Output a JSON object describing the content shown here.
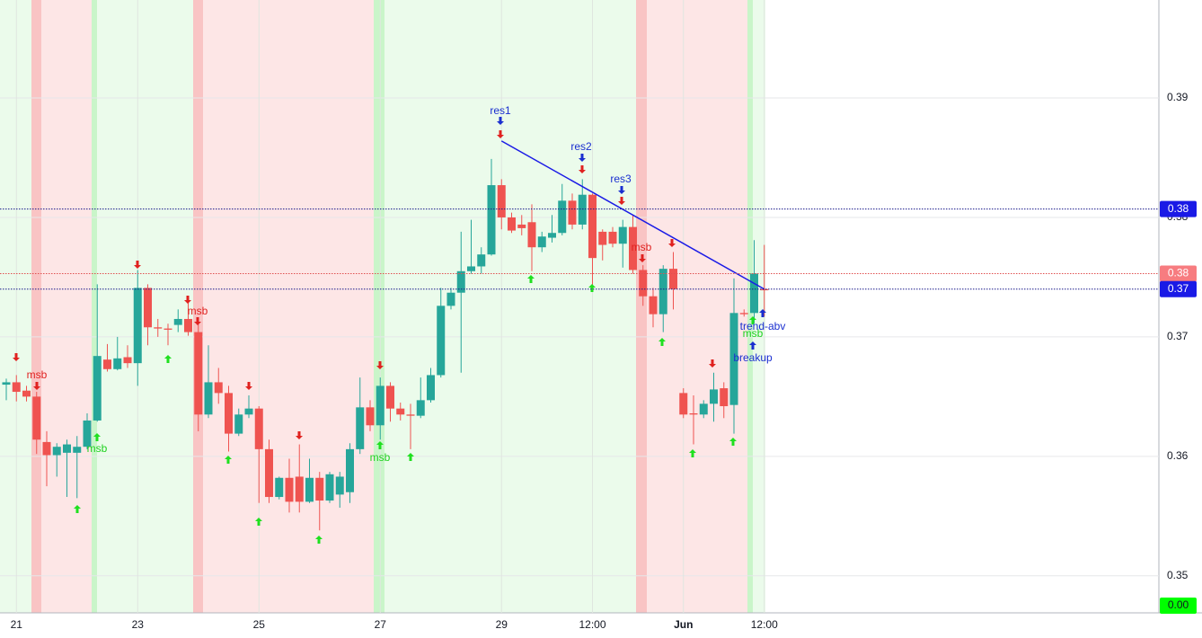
{
  "chart_data": {
    "type": "candlestick",
    "categories": [
      null,
      "21",
      null,
      null,
      null,
      null,
      null,
      null,
      null,
      null,
      null,
      null,
      null,
      "23",
      null,
      null,
      null,
      null,
      null,
      null,
      null,
      null,
      null,
      null,
      null,
      "25",
      null,
      null,
      null,
      null,
      null,
      null,
      null,
      null,
      null,
      null,
      null,
      "27",
      null,
      null,
      null,
      null,
      null,
      null,
      null,
      null,
      null,
      null,
      null,
      "29",
      null,
      null,
      null,
      null,
      null,
      null,
      null,
      null,
      "12:00",
      null,
      null,
      null,
      null,
      null,
      null,
      null,
      null,
      "Jun",
      null,
      null,
      null,
      null,
      null,
      null,
      null,
      "12:00"
    ],
    "open": [
      0.366,
      0.3662,
      0.3655,
      0.365,
      0.3612,
      0.3601,
      0.3603,
      0.3603,
      0.3608,
      0.363,
      0.3681,
      0.3673,
      0.3683,
      0.3678,
      0.3741,
      0.3708,
      0.3707,
      0.371,
      0.3715,
      0.3704,
      0.3635,
      0.3662,
      0.3653,
      0.3619,
      0.3635,
      0.364,
      0.3606,
      0.3566,
      0.3582,
      0.3583,
      0.3562,
      0.3582,
      0.3563,
      0.3568,
      0.357,
      0.3606,
      0.3641,
      0.3626,
      0.3659,
      0.364,
      0.3635,
      0.3634,
      0.3647,
      0.3668,
      0.3726,
      0.3737,
      0.3755,
      0.3759,
      0.3769,
      0.3827,
      0.38,
      0.3794,
      0.3796,
      0.3775,
      0.3783,
      0.3787,
      0.3814,
      0.3794,
      0.3819,
      0.3788,
      0.3788,
      0.3778,
      0.3792,
      0.3756,
      0.3734,
      0.3719,
      0.3757,
      0.3653,
      0.3636,
      0.3635,
      0.3644,
      0.3657,
      0.3643,
      0.372,
      0.372,
      0.374
    ],
    "high": [
      0.3665,
      0.3668,
      0.3659,
      0.3654,
      0.3621,
      0.3611,
      0.3614,
      0.3617,
      0.3636,
      0.3744,
      0.3694,
      0.37,
      0.3693,
      0.3756,
      0.3744,
      0.3715,
      0.3711,
      0.3723,
      0.3729,
      0.3715,
      0.3693,
      0.3674,
      0.3659,
      0.364,
      0.3651,
      0.3642,
      0.3614,
      0.3583,
      0.3598,
      0.361,
      0.3598,
      0.3587,
      0.3587,
      0.3587,
      0.3611,
      0.3666,
      0.3647,
      0.3666,
      0.3662,
      0.3645,
      0.3644,
      0.3666,
      0.3674,
      0.3741,
      0.3741,
      0.3788,
      0.3798,
      0.3775,
      0.3849,
      0.3832,
      0.3804,
      0.3802,
      0.3811,
      0.3788,
      0.3802,
      0.3828,
      0.382,
      0.3832,
      0.382,
      0.379,
      0.3792,
      0.3798,
      0.3802,
      0.376,
      0.3741,
      0.376,
      0.3771,
      0.3657,
      0.3651,
      0.3647,
      0.367,
      0.3662,
      0.3749,
      0.3723,
      0.3781,
      0.3777
    ],
    "low": [
      0.3647,
      0.3646,
      0.3646,
      0.3602,
      0.3575,
      0.3583,
      0.3566,
      0.3565,
      0.3606,
      0.3629,
      0.3671,
      0.3672,
      0.3674,
      0.3659,
      0.3693,
      0.37,
      0.3693,
      0.3704,
      0.3701,
      0.3621,
      0.3632,
      0.3644,
      0.3604,
      0.3617,
      0.3632,
      0.3561,
      0.3561,
      0.3564,
      0.3553,
      0.3553,
      0.3561,
      0.3538,
      0.3561,
      0.3557,
      0.3561,
      0.3602,
      0.3621,
      0.3614,
      0.3629,
      0.363,
      0.3606,
      0.3632,
      0.3645,
      0.3666,
      0.3723,
      0.367,
      0.3753,
      0.3753,
      0.3768,
      0.379,
      0.3787,
      0.3785,
      0.3755,
      0.3771,
      0.3779,
      0.3785,
      0.379,
      0.379,
      0.3743,
      0.3764,
      0.3775,
      0.3758,
      0.3753,
      0.3726,
      0.3708,
      0.3704,
      0.3723,
      0.3632,
      0.361,
      0.3632,
      0.3629,
      0.3632,
      0.3619,
      0.3717,
      0.3711,
      0.3717
    ],
    "close": [
      0.3662,
      0.3654,
      0.365,
      0.3614,
      0.3601,
      0.3608,
      0.361,
      0.3608,
      0.363,
      0.3684,
      0.3673,
      0.3682,
      0.3678,
      0.3741,
      0.3708,
      0.3707,
      0.3706,
      0.3715,
      0.3704,
      0.3635,
      0.3662,
      0.3653,
      0.3619,
      0.3635,
      0.364,
      0.3606,
      0.3566,
      0.3582,
      0.3562,
      0.3562,
      0.3582,
      0.3563,
      0.3585,
      0.3583,
      0.3606,
      0.3641,
      0.3626,
      0.3659,
      0.364,
      0.3635,
      0.3634,
      0.3647,
      0.3668,
      0.3726,
      0.3737,
      0.3755,
      0.3759,
      0.3769,
      0.3827,
      0.38,
      0.3789,
      0.3791,
      0.3775,
      0.3784,
      0.3787,
      0.3814,
      0.3794,
      0.3819,
      0.3766,
      0.3777,
      0.3778,
      0.3792,
      0.3756,
      0.3734,
      0.3719,
      0.3757,
      0.374,
      0.3635,
      0.3635,
      0.3644,
      0.3656,
      0.3642,
      0.372,
      0.3719,
      0.3753,
      0.3739
    ],
    "up_color": "#26a69a",
    "down_color": "#ef5350",
    "ylim": [
      0.3469,
      0.3982
    ],
    "yticks": [
      0.35,
      0.36,
      0.37,
      0.38,
      0.39
    ],
    "grid": true,
    "price_lines": [
      {
        "value": 0.3807,
        "label": "0.38",
        "color": "#1a1ae6",
        "text_color": "#ffffff"
      },
      {
        "value": 0.3753,
        "label": "0.38",
        "color": "#f77c80",
        "text_color": "#ffffff"
      },
      {
        "value": 0.374,
        "label": "0.37",
        "color": "#1a1ae6",
        "text_color": "#ffffff"
      },
      {
        "value": 0,
        "label": "0.00",
        "color": "#00ff00",
        "text_color": "#131722"
      }
    ],
    "trendline": {
      "x": [
        49,
        75
      ],
      "values": [
        0.3864,
        0.374
      ],
      "color": "#1a1ae6"
    },
    "annotations": [
      {
        "text": "msb",
        "color": "#e0211f"
      },
      {
        "text": "msb",
        "color": "#1fd11f"
      },
      {
        "text": "msb",
        "color": "#e0211f"
      },
      {
        "text": "msb",
        "color": "#1fd11f"
      },
      {
        "text": "res1",
        "color": "#1a2fd0"
      },
      {
        "text": "res2",
        "color": "#1a2fd0"
      },
      {
        "text": "res3",
        "color": "#1a2fd0"
      },
      {
        "text": "msb",
        "color": "#e0211f"
      },
      {
        "text": "trend-abv",
        "color": "#1a2fd0"
      },
      {
        "text": "msb",
        "color": "#1fd11f"
      },
      {
        "text": "breakup",
        "color": "#1a2fd0"
      }
    ]
  }
}
